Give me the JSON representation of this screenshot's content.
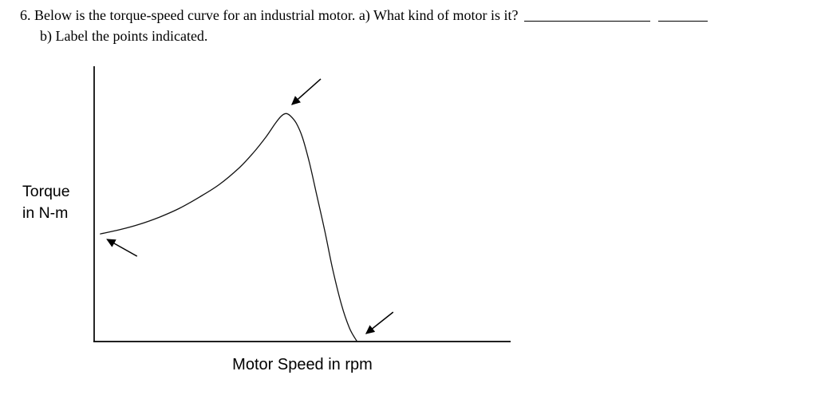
{
  "question": {
    "line1": "6. Below is the torque-speed curve for an industrial motor. a) What kind of motor is it?",
    "line2": "b) Label the points indicated.",
    "answer_blank_count": 2
  },
  "chart": {
    "ylabel_line1": "Torque",
    "ylabel_line2": "in N-m",
    "xlabel": "Motor Speed in rpm"
  },
  "chart_data": {
    "type": "line",
    "title": "Torque-speed curve for an industrial motor",
    "xlabel": "Motor Speed in rpm",
    "ylabel": "Torque in N-m",
    "x_ticks": [],
    "y_ticks": [],
    "grid": false,
    "legend": false,
    "axis_scale_note": "no numeric scale shown; points given as fractions of axis length (x = speed 0-1, y = torque 0-1)",
    "series": [
      {
        "name": "torque-speed curve",
        "points": [
          [
            0.015,
            0.391
          ],
          [
            0.061,
            0.406
          ],
          [
            0.109,
            0.426
          ],
          [
            0.157,
            0.452
          ],
          [
            0.205,
            0.484
          ],
          [
            0.253,
            0.525
          ],
          [
            0.301,
            0.571
          ],
          [
            0.349,
            0.632
          ],
          [
            0.383,
            0.687
          ],
          [
            0.412,
            0.742
          ],
          [
            0.433,
            0.788
          ],
          [
            0.448,
            0.817
          ],
          [
            0.46,
            0.828
          ],
          [
            0.471,
            0.82
          ],
          [
            0.485,
            0.794
          ],
          [
            0.5,
            0.742
          ],
          [
            0.517,
            0.649
          ],
          [
            0.534,
            0.536
          ],
          [
            0.554,
            0.4
          ],
          [
            0.573,
            0.261
          ],
          [
            0.594,
            0.133
          ],
          [
            0.613,
            0.049
          ],
          [
            0.63,
            0.003
          ]
        ]
      }
    ],
    "annotations": [
      {
        "name": "curve-start",
        "description": "arrow pointing at start of curve (torque at zero speed)",
        "target": [
          0.031,
          0.371
        ],
        "tail": [
          0.103,
          0.31
        ]
      },
      {
        "name": "curve-peak",
        "description": "arrow pointing at peak of curve (maximum torque)",
        "target": [
          0.475,
          0.861
        ],
        "tail": [
          0.544,
          0.954
        ]
      },
      {
        "name": "zero-torque-point",
        "description": "arrow pointing where curve meets the speed axis (zero torque)",
        "target": [
          0.653,
          0.029
        ],
        "tail": [
          0.718,
          0.107
        ]
      }
    ]
  }
}
